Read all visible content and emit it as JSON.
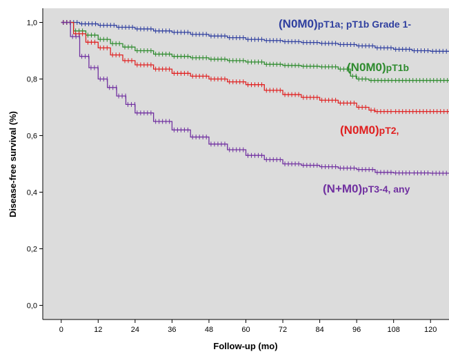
{
  "chart_data": {
    "type": "line",
    "subtype": "kaplan-meier",
    "title": "",
    "xlabel": "Follow-up (mo)",
    "ylabel": "Disease-free survival (%)",
    "xlim": [
      -6,
      126
    ],
    "ylim": [
      -0.05,
      1.05
    ],
    "x_ticks": [
      0,
      12,
      24,
      36,
      48,
      60,
      72,
      84,
      96,
      108,
      120
    ],
    "y_ticks": [
      0.0,
      0.2,
      0.4,
      0.6,
      0.8,
      1.0
    ],
    "y_tick_labels": [
      "0,0",
      "0,2",
      "0,4",
      "0,6",
      "0,8",
      "1,0"
    ],
    "plot_background": "#dcdcdc",
    "grid": false,
    "legend": "inline-labels",
    "series": [
      {
        "label_main": "(N0M0)",
        "label_rest": "pT1a; pT1b Grade 1-",
        "color": "#2f3f9f",
        "x": [
          0,
          6,
          12,
          18,
          24,
          30,
          36,
          42,
          48,
          54,
          60,
          66,
          72,
          78,
          84,
          90,
          96,
          102,
          108,
          114,
          120,
          126
        ],
        "y": [
          1.0,
          0.995,
          0.99,
          0.983,
          0.977,
          0.97,
          0.965,
          0.958,
          0.952,
          0.946,
          0.94,
          0.936,
          0.932,
          0.929,
          0.926,
          0.922,
          0.917,
          0.91,
          0.905,
          0.9,
          0.898,
          0.896
        ]
      },
      {
        "label_main": "(N0M0)",
        "label_rest": "pT1b",
        "color": "#2e8b2e",
        "x": [
          0,
          4,
          8,
          12,
          16,
          20,
          24,
          30,
          36,
          42,
          48,
          54,
          60,
          66,
          72,
          78,
          84,
          90,
          94,
          96,
          100,
          108,
          126
        ],
        "y": [
          1.0,
          0.97,
          0.955,
          0.94,
          0.925,
          0.913,
          0.9,
          0.888,
          0.88,
          0.875,
          0.87,
          0.865,
          0.86,
          0.852,
          0.848,
          0.845,
          0.843,
          0.835,
          0.81,
          0.8,
          0.795,
          0.795,
          0.795
        ]
      },
      {
        "label_main": "(N0M0)",
        "label_rest": "pT2,",
        "color": "#e02020",
        "x": [
          0,
          4,
          8,
          12,
          16,
          20,
          24,
          30,
          36,
          42,
          48,
          54,
          60,
          66,
          72,
          78,
          84,
          90,
          96,
          100,
          102,
          108,
          126
        ],
        "y": [
          1.0,
          0.96,
          0.93,
          0.91,
          0.885,
          0.865,
          0.85,
          0.835,
          0.82,
          0.81,
          0.8,
          0.79,
          0.78,
          0.76,
          0.745,
          0.735,
          0.725,
          0.715,
          0.7,
          0.69,
          0.685,
          0.685,
          0.685
        ]
      },
      {
        "label_main": "(N+M0)",
        "label_rest": "pT3-4, any",
        "color": "#7030a0",
        "x": [
          0,
          3,
          6,
          9,
          12,
          15,
          18,
          21,
          24,
          30,
          36,
          42,
          48,
          54,
          60,
          66,
          72,
          78,
          84,
          90,
          96,
          102,
          108,
          114,
          120,
          126
        ],
        "y": [
          1.0,
          0.95,
          0.88,
          0.84,
          0.8,
          0.77,
          0.74,
          0.71,
          0.68,
          0.65,
          0.62,
          0.595,
          0.57,
          0.55,
          0.53,
          0.515,
          0.5,
          0.495,
          0.49,
          0.485,
          0.48,
          0.47,
          0.468,
          0.468,
          0.467,
          0.467
        ]
      }
    ]
  }
}
